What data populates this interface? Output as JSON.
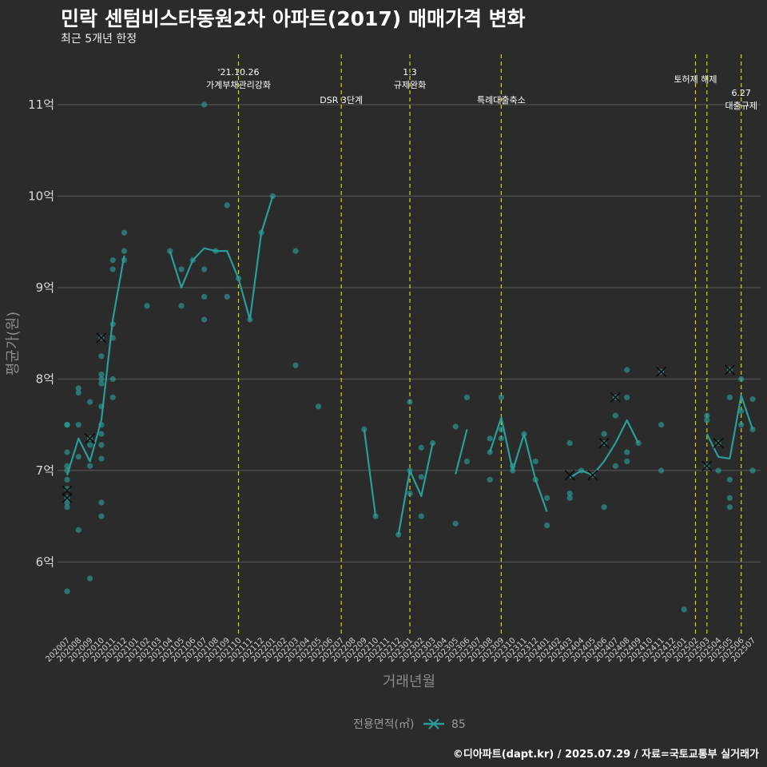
{
  "header": {
    "title": "민락 센텀비스타동원2차 아파트(2017) 매매가격 변화",
    "subtitle": "최근 5개년 한정"
  },
  "footer": {
    "caption": "©디아파트(dapt.kr) / 2025.07.29 / 자료=국토교통부 실거래가"
  },
  "colors": {
    "background": "#2b2b2b",
    "series": "#2a9d9a",
    "event_line": "#d6d600",
    "grid": "#5a5a5a"
  },
  "chart_data": {
    "type": "line",
    "title": "민락 센텀비스타동원2차 아파트(2017) 매매가격 변화",
    "xlabel": "거래년월",
    "ylabel": "평균가(원)",
    "ylim": [
      5.2,
      11.55
    ],
    "yticks": [
      6,
      7,
      8,
      9,
      10,
      11
    ],
    "ytick_labels": [
      "6억",
      "7억",
      "8억",
      "9억",
      "10억",
      "11억"
    ],
    "x_categories": [
      "202007",
      "202008",
      "202009",
      "202010",
      "202011",
      "202012",
      "202101",
      "202102",
      "202103",
      "202104",
      "202105",
      "202106",
      "202107",
      "202108",
      "202109",
      "202110",
      "202111",
      "202112",
      "202201",
      "202202",
      "202203",
      "202204",
      "202205",
      "202206",
      "202207",
      "202208",
      "202209",
      "202210",
      "202211",
      "202212",
      "202301",
      "202302",
      "202303",
      "202304",
      "202305",
      "202306",
      "202307",
      "202308",
      "202309",
      "202310",
      "202311",
      "202312",
      "202401",
      "202402",
      "202403",
      "202404",
      "202405",
      "202406",
      "202407",
      "202408",
      "202409",
      "202410",
      "202411",
      "202412",
      "202501",
      "202502",
      "202503",
      "202504",
      "202505",
      "202506",
      "202507"
    ],
    "legend": {
      "title": "전용면적(㎡)",
      "entries": [
        "85"
      ],
      "position": "bottom"
    },
    "series": [
      {
        "name": "85",
        "line": [
          [
            0,
            6.95
          ],
          [
            1,
            7.35
          ],
          [
            2,
            7.1
          ],
          [
            3,
            7.55
          ],
          [
            4,
            8.65
          ],
          [
            5,
            9.35
          ],
          null,
          [
            9,
            9.4
          ],
          [
            10,
            9.0
          ],
          [
            11,
            9.3
          ],
          [
            12,
            9.43
          ],
          [
            13,
            9.4
          ],
          [
            14,
            9.4
          ],
          [
            15,
            9.1
          ],
          [
            16,
            8.65
          ],
          [
            17,
            9.6
          ],
          [
            18,
            10.0
          ],
          null,
          [
            26,
            7.45
          ],
          [
            27,
            6.5
          ],
          null,
          [
            29,
            6.3
          ],
          [
            30,
            7.0
          ],
          [
            31,
            6.72
          ],
          [
            32,
            7.3
          ],
          null,
          [
            34,
            6.96
          ],
          [
            35,
            7.45
          ],
          null,
          [
            37,
            7.2
          ],
          [
            38,
            7.58
          ],
          [
            39,
            7.0
          ],
          [
            40,
            7.4
          ],
          [
            41,
            6.9
          ],
          [
            42,
            6.55
          ],
          null,
          [
            44,
            6.92
          ],
          [
            45,
            7.0
          ],
          [
            46,
            6.95
          ],
          [
            47,
            7.1
          ],
          [
            48,
            7.3
          ],
          [
            49,
            7.55
          ],
          [
            50,
            7.3
          ],
          null,
          [
            56,
            7.4
          ],
          [
            57,
            7.15
          ],
          [
            58,
            7.13
          ],
          [
            59,
            7.82
          ],
          [
            60,
            7.45
          ]
        ],
        "points": [
          [
            0,
            5.68
          ],
          [
            0,
            6.6
          ],
          [
            0,
            6.65
          ],
          [
            0,
            6.7
          ],
          [
            0,
            6.8
          ],
          [
            0,
            6.9
          ],
          [
            0,
            7.0
          ],
          [
            0,
            7.05
          ],
          [
            0,
            7.2
          ],
          [
            0,
            7.5
          ],
          [
            0,
            7.5
          ],
          [
            1,
            6.35
          ],
          [
            1,
            7.15
          ],
          [
            1,
            7.5
          ],
          [
            1,
            7.85
          ],
          [
            1,
            7.9
          ],
          [
            2,
            5.82
          ],
          [
            2,
            7.05
          ],
          [
            2,
            7.28
          ],
          [
            2,
            7.35
          ],
          [
            2,
            7.75
          ],
          [
            3,
            6.5
          ],
          [
            3,
            6.65
          ],
          [
            3,
            7.13
          ],
          [
            3,
            7.28
          ],
          [
            3,
            7.4
          ],
          [
            3,
            7.5
          ],
          [
            3,
            7.7
          ],
          [
            3,
            7.95
          ],
          [
            3,
            8.0
          ],
          [
            3,
            8.05
          ],
          [
            3,
            8.25
          ],
          [
            3,
            8.45
          ],
          [
            4,
            7.8
          ],
          [
            4,
            8.0
          ],
          [
            4,
            8.45
          ],
          [
            4,
            8.6
          ],
          [
            4,
            9.2
          ],
          [
            4,
            9.3
          ],
          [
            5,
            9.3
          ],
          [
            5,
            9.4
          ],
          [
            5,
            9.6
          ],
          [
            7,
            8.8
          ],
          [
            9,
            9.4
          ],
          [
            10,
            8.8
          ],
          [
            10,
            9.2
          ],
          [
            11,
            9.3
          ],
          [
            12,
            8.65
          ],
          [
            12,
            8.9
          ],
          [
            12,
            9.2
          ],
          [
            12,
            11.0
          ],
          [
            13,
            9.4
          ],
          [
            14,
            8.9
          ],
          [
            14,
            9.9
          ],
          [
            15,
            9.1
          ],
          [
            16,
            8.65
          ],
          [
            17,
            9.6
          ],
          [
            18,
            10.0
          ],
          [
            20,
            8.15
          ],
          [
            20,
            9.4
          ],
          [
            22,
            7.7
          ],
          [
            26,
            7.45
          ],
          [
            27,
            6.5
          ],
          [
            29,
            6.3
          ],
          [
            30,
            6.75
          ],
          [
            30,
            7.0
          ],
          [
            30,
            7.75
          ],
          [
            31,
            6.5
          ],
          [
            31,
            6.93
          ],
          [
            31,
            7.25
          ],
          [
            32,
            7.3
          ],
          [
            34,
            6.42
          ],
          [
            34,
            7.48
          ],
          [
            35,
            7.1
          ],
          [
            35,
            7.8
          ],
          [
            37,
            6.9
          ],
          [
            37,
            7.2
          ],
          [
            37,
            7.35
          ],
          [
            38,
            7.35
          ],
          [
            38,
            7.45
          ],
          [
            38,
            7.8
          ],
          [
            39,
            7.0
          ],
          [
            39,
            7.05
          ],
          [
            40,
            7.4
          ],
          [
            41,
            6.9
          ],
          [
            41,
            7.1
          ],
          [
            42,
            6.4
          ],
          [
            42,
            6.7
          ],
          [
            44,
            6.7
          ],
          [
            44,
            6.75
          ],
          [
            44,
            7.3
          ],
          [
            45,
            7.0
          ],
          [
            46,
            6.95
          ],
          [
            47,
            6.6
          ],
          [
            47,
            7.3
          ],
          [
            47,
            7.4
          ],
          [
            48,
            7.05
          ],
          [
            48,
            7.6
          ],
          [
            48,
            7.8
          ],
          [
            49,
            7.1
          ],
          [
            49,
            7.2
          ],
          [
            49,
            7.8
          ],
          [
            49,
            8.1
          ],
          [
            50,
            7.3
          ],
          [
            52,
            7.0
          ],
          [
            52,
            7.5
          ],
          [
            52,
            8.08
          ],
          [
            54,
            5.48
          ],
          [
            56,
            7.05
          ],
          [
            56,
            7.55
          ],
          [
            56,
            7.6
          ],
          [
            57,
            7.0
          ],
          [
            57,
            7.3
          ],
          [
            58,
            6.6
          ],
          [
            58,
            6.7
          ],
          [
            58,
            6.9
          ],
          [
            58,
            7.8
          ],
          [
            58,
            8.1
          ],
          [
            59,
            7.5
          ],
          [
            59,
            7.65
          ],
          [
            59,
            8.0
          ],
          [
            60,
            7.0
          ],
          [
            60,
            7.45
          ],
          [
            60,
            7.78
          ]
        ],
        "cross_markers": [
          [
            0,
            6.78
          ],
          [
            0,
            6.7
          ],
          [
            2,
            7.35
          ],
          [
            3,
            8.45
          ],
          [
            44,
            6.95
          ],
          [
            46,
            6.95
          ],
          [
            47,
            7.3
          ],
          [
            48,
            7.8
          ],
          [
            52,
            8.08
          ],
          [
            56,
            7.05
          ],
          [
            57,
            7.3
          ],
          [
            58,
            8.1
          ]
        ]
      }
    ],
    "events": [
      {
        "x": 15.0,
        "lines": [
          "'21.10.26",
          "가계부채관리강화"
        ],
        "level": "top"
      },
      {
        "x": 24.0,
        "lines": [
          "DSR 3단계"
        ],
        "level": "mid"
      },
      {
        "x": 30.0,
        "lines": [
          "1.3",
          "규제완화"
        ],
        "level": "top"
      },
      {
        "x": 38.0,
        "lines": [
          "특례대출축소"
        ],
        "level": "mid"
      },
      {
        "x": 55.0,
        "lines": [
          "토허제 해제"
        ],
        "level": "upper"
      },
      {
        "x": 56.0,
        "lines": [
          ""
        ],
        "level": "none"
      },
      {
        "x": 59.0,
        "lines": [
          "6.27",
          "대출규제"
        ],
        "level": "low"
      }
    ]
  }
}
